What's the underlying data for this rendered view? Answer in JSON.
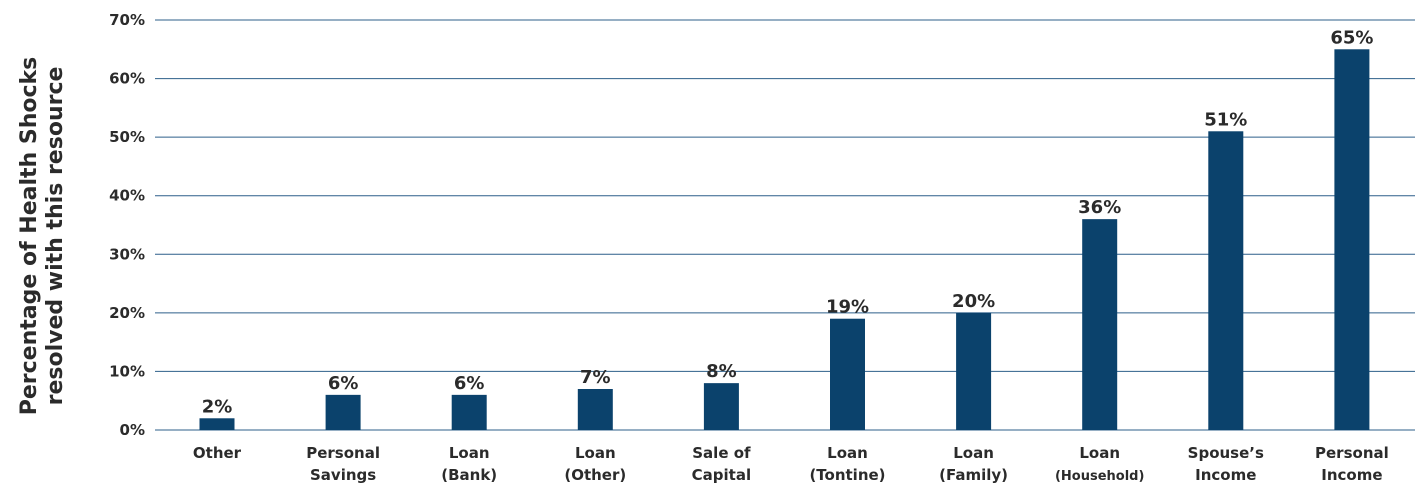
{
  "chart_data": {
    "type": "bar",
    "title": "",
    "xlabel": "",
    "ylabel": [
      "Percentage of Health Shocks",
      "resolved with this resource"
    ],
    "categories": [
      [
        "Other"
      ],
      [
        "Personal",
        "Savings"
      ],
      [
        "Loan",
        "(Bank)"
      ],
      [
        "Loan",
        "(Other)"
      ],
      [
        "Sale of",
        "Capital"
      ],
      [
        "Loan",
        "(Tontine)"
      ],
      [
        "Loan",
        "(Family)"
      ],
      [
        "Loan",
        "(Household)"
      ],
      [
        "Spouse’s",
        "Income"
      ],
      [
        "Personal",
        "Income"
      ]
    ],
    "values": [
      2,
      6,
      6,
      7,
      8,
      19,
      20,
      36,
      51,
      65
    ],
    "value_labels": [
      "2%",
      "6%",
      "6%",
      "7%",
      "8%",
      "19%",
      "20%",
      "36%",
      "51%",
      "65%"
    ],
    "ylim": [
      0,
      70
    ],
    "yticks": [
      0,
      10,
      20,
      30,
      40,
      50,
      60,
      70
    ],
    "ytick_labels": [
      "0%",
      "10%",
      "20%",
      "30%",
      "40%",
      "50%",
      "60%",
      "70%"
    ],
    "grid": true,
    "legend": "none",
    "colors": {
      "bar": "#0b426c",
      "grid": "#2d5f8a",
      "text": "#2b2b2b"
    }
  }
}
